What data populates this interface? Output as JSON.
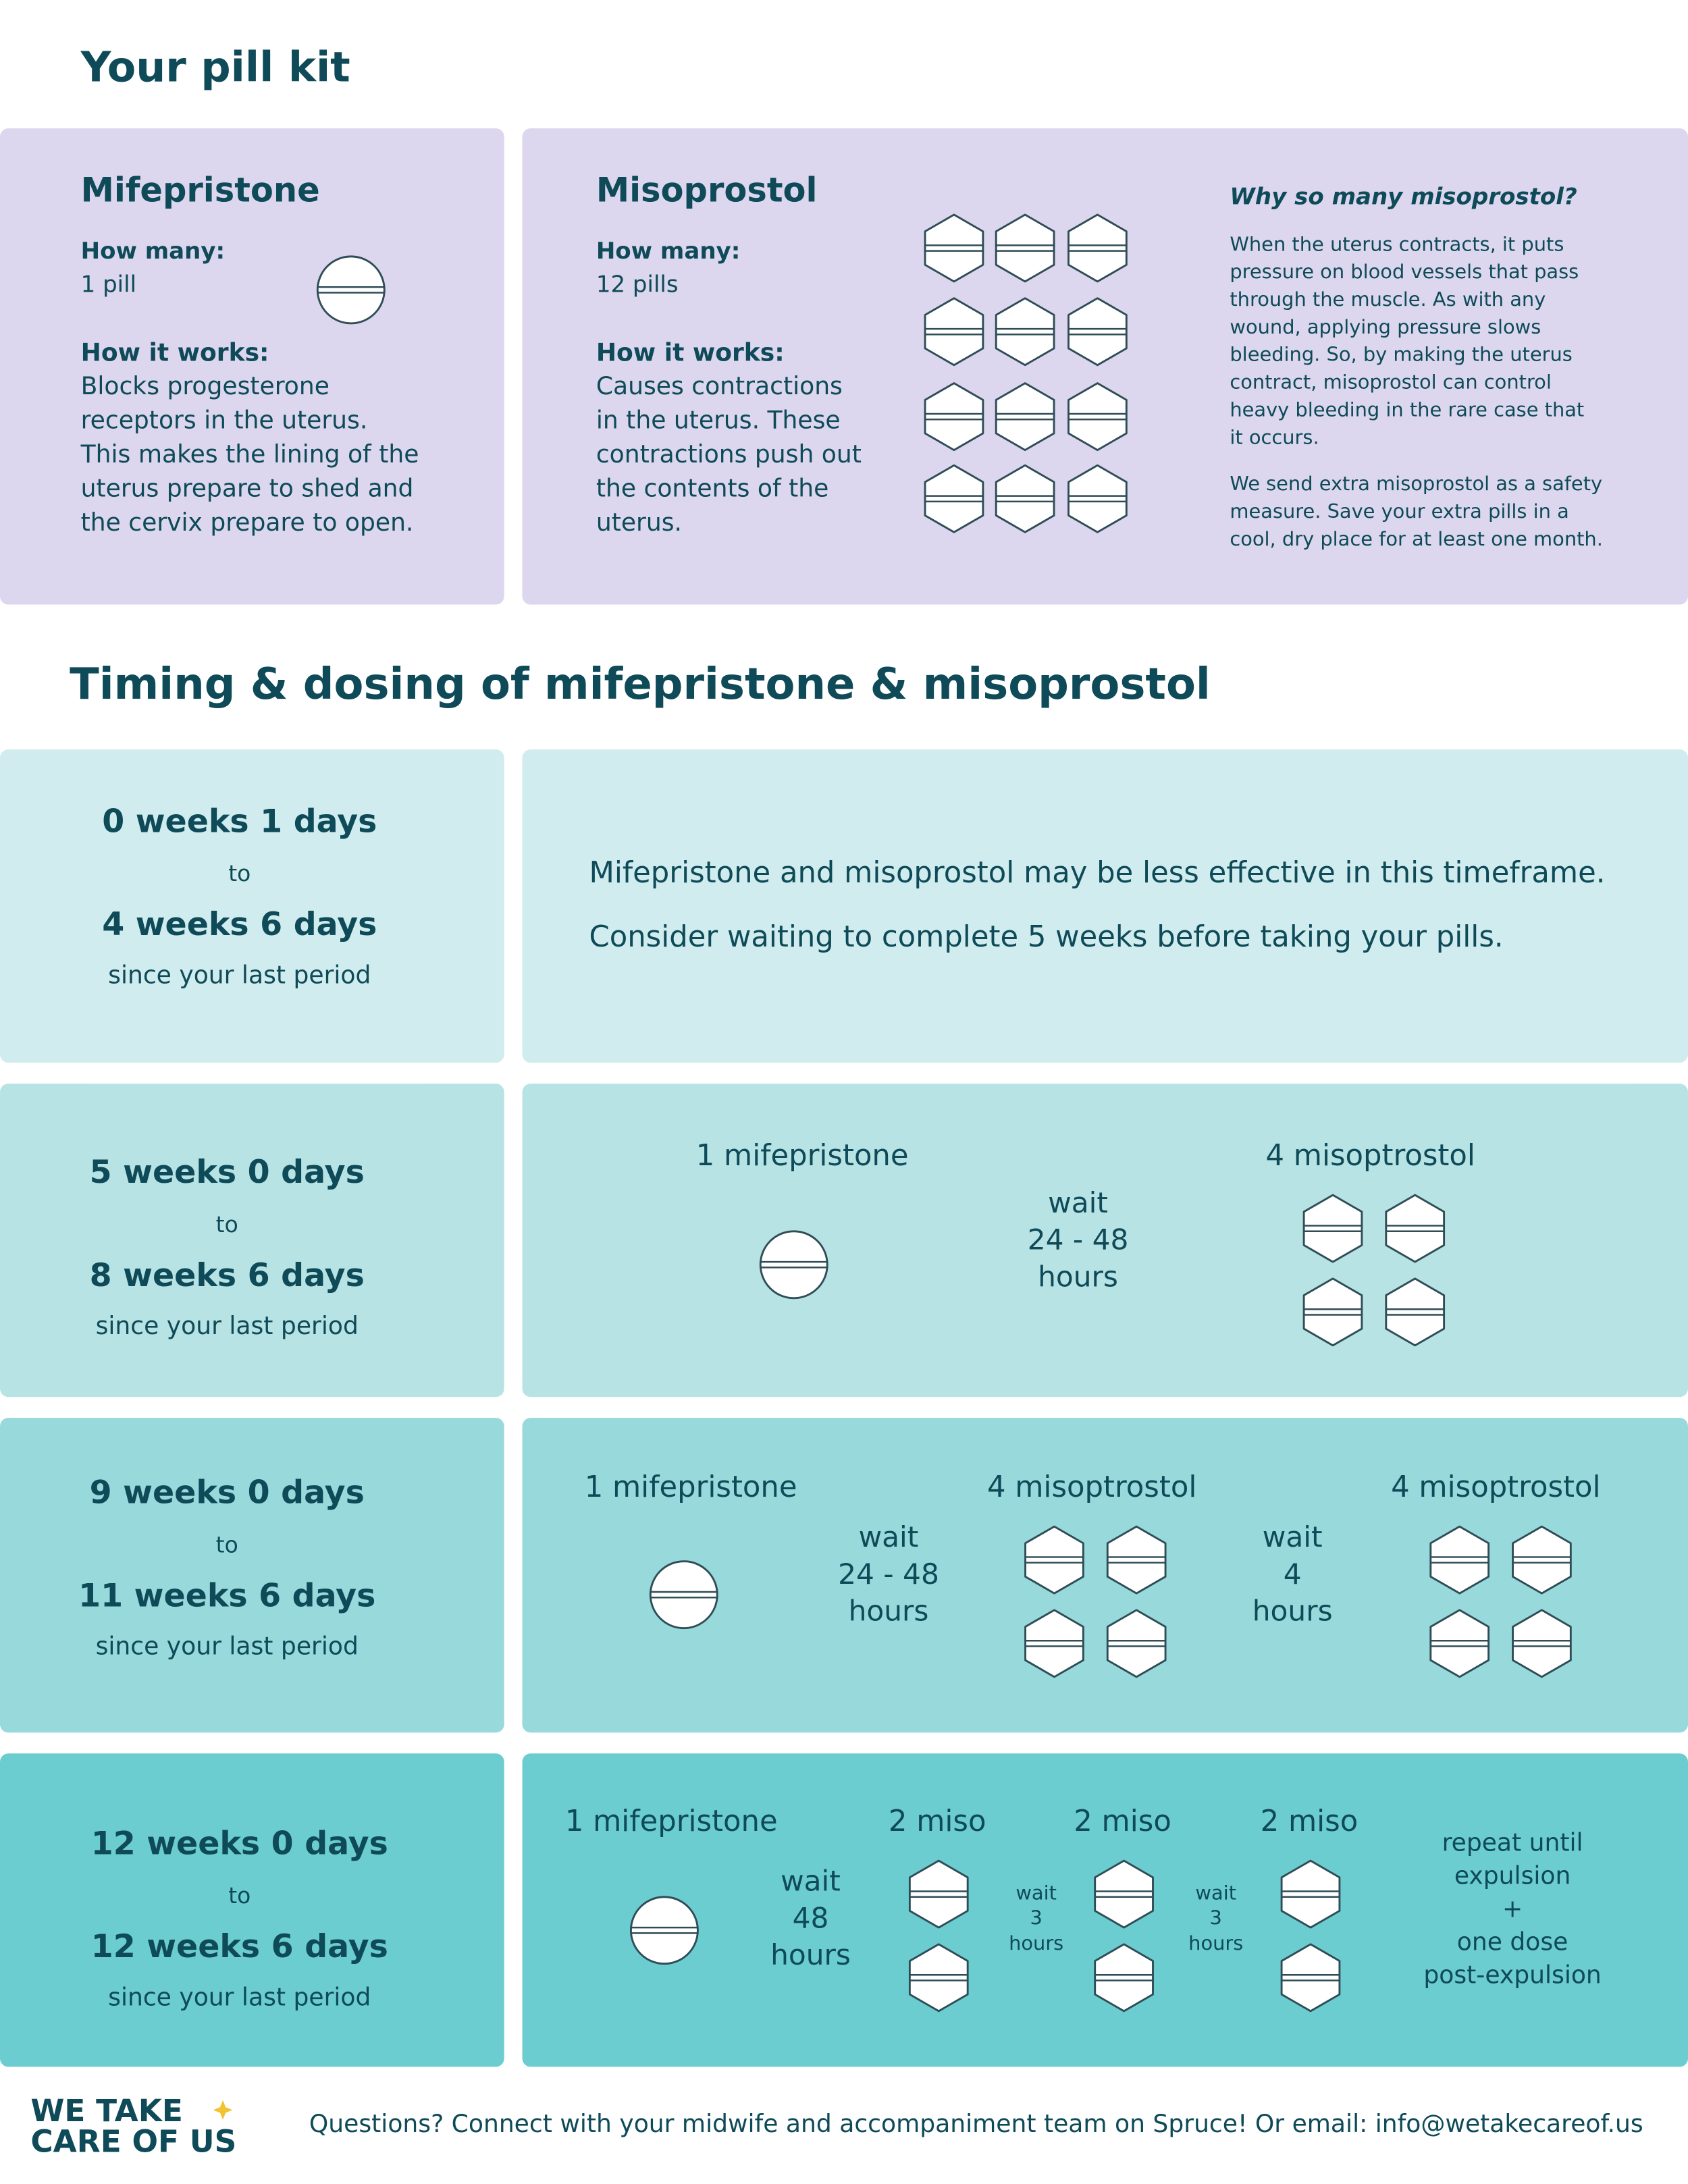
{
  "header": {
    "title": "Your pill kit"
  },
  "kit": {
    "mifepristone": {
      "name": "Mifepristone",
      "how_many_label": "How many:",
      "how_many": "1 pill",
      "how_it_works_label": "How it works:",
      "how_it_works": [
        "Blocks progesterone",
        "receptors in the uterus.",
        "This makes the lining of the",
        "uterus prepare to shed and",
        "the cervix prepare to open."
      ]
    },
    "misoprostol": {
      "name": "Misoprostol",
      "how_many_label": "How many:",
      "how_many": "12 pills",
      "how_it_works_label": "How it works:",
      "how_it_works": [
        "Causes contractions",
        "in the uterus. These",
        "contractions push out",
        "the contents of the",
        "uterus."
      ]
    },
    "why": {
      "title": "Why so many misoprostol?",
      "paragraphs": [
        [
          "When the uterus contracts, it puts",
          "pressure on blood vessels that pass",
          "through the muscle. As with any",
          "wound, applying pressure slows",
          "bleeding. So, by making the uterus",
          "contract, misoprostol can control",
          "heavy bleeding in the rare case that",
          "it occurs."
        ],
        [
          "We send extra misoprostol as a safety",
          "measure. Save your extra pills in a",
          "cool, dry place for at least one month."
        ]
      ]
    }
  },
  "timing": {
    "title": "Timing & dosing of mifepristone & misoprostol",
    "rows": [
      {
        "from": "0 weeks 1 days",
        "to": "to",
        "until": "4 weeks 6 days",
        "since": "since your last period",
        "message": [
          "Mifepristone and misoprostol may be less effective in this timeframe.",
          "Consider waiting to complete 5 weeks before taking your pills."
        ]
      },
      {
        "from": "5 weeks 0 days",
        "to": "to",
        "until": "8 weeks 6 days",
        "since": "since your last period",
        "steps": [
          "1 mifepristone",
          [
            "wait",
            "24 - 48",
            "hours"
          ],
          "4 misoptrostol"
        ]
      },
      {
        "from": "9 weeks 0 days",
        "to": "to",
        "until": "11 weeks 6 days",
        "since": "since your last period",
        "steps": [
          "1 mifepristone",
          [
            "wait",
            "24 - 48",
            "hours"
          ],
          "4 misoptrostol",
          [
            "wait",
            "4",
            "hours"
          ],
          "4 misoptrostol"
        ]
      },
      {
        "from": "12 weeks 0 days",
        "to": "to",
        "until": "12 weeks 6 days",
        "since": "since your last period",
        "steps": [
          "1 mifepristone",
          [
            "wait",
            "48",
            "hours"
          ],
          "2 miso",
          [
            "wait",
            "3",
            "hours"
          ],
          "2 miso",
          [
            "wait",
            "3",
            "hours"
          ],
          "2 miso",
          [
            "repeat until",
            "expulsion",
            "+",
            "one dose",
            "post-expulsion"
          ]
        ]
      }
    ]
  },
  "footer": {
    "logo": [
      "WE TAKE",
      "CARE OF US"
    ],
    "contact": "Questions? Connect with your midwife and accompaniment team on Spruce! Or email: info@wetakecareof.us"
  }
}
